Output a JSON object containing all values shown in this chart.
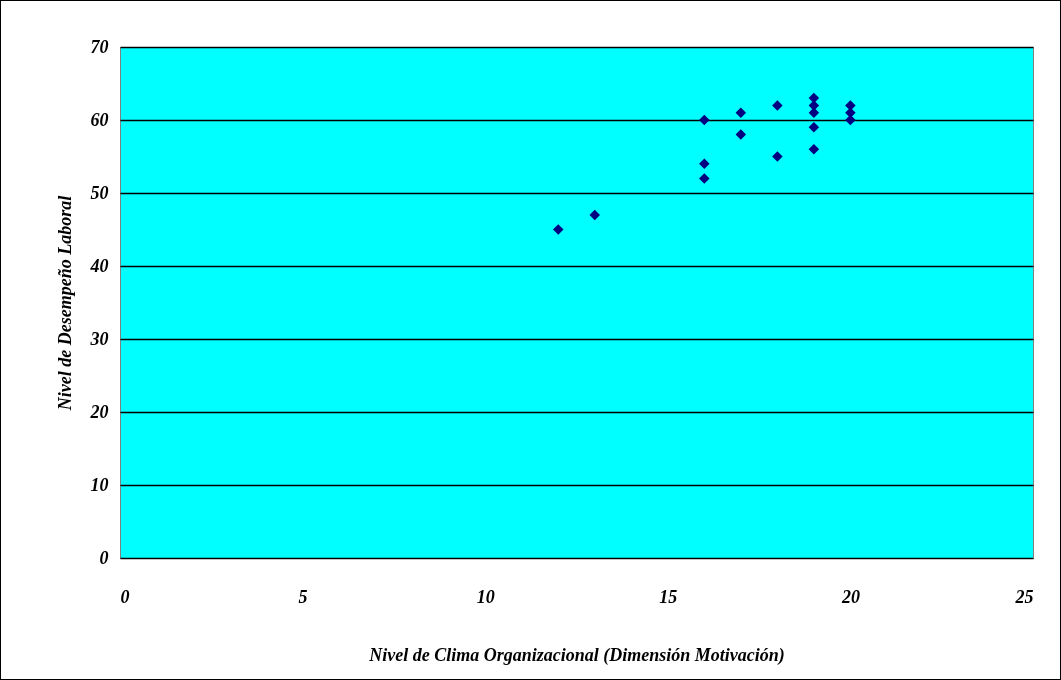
{
  "chart_data": {
    "type": "scatter",
    "xlabel": "Nivel de Clima Organizacional (Dimensión Motivación)",
    "ylabel": "Nivel de Desempeño Laboral",
    "x": [
      12,
      13,
      16,
      16,
      16,
      17,
      17,
      18,
      18,
      19,
      19,
      19,
      19,
      19,
      20,
      20,
      20
    ],
    "series": [
      {
        "color": "#000080",
        "values": [
          45,
          47,
          60,
          54,
          52,
          61,
          58,
          62,
          55,
          63,
          62,
          61,
          59,
          56,
          62,
          61,
          60
        ]
      }
    ],
    "xlim": [
      0,
      25
    ],
    "xticks": [
      0,
      5,
      10,
      15,
      20,
      25
    ],
    "ylim": [
      0,
      70
    ],
    "yticks": [
      0,
      10,
      20,
      30,
      40,
      50,
      60,
      70
    ],
    "grid": "y",
    "marker": "diamond",
    "legend": false
  }
}
